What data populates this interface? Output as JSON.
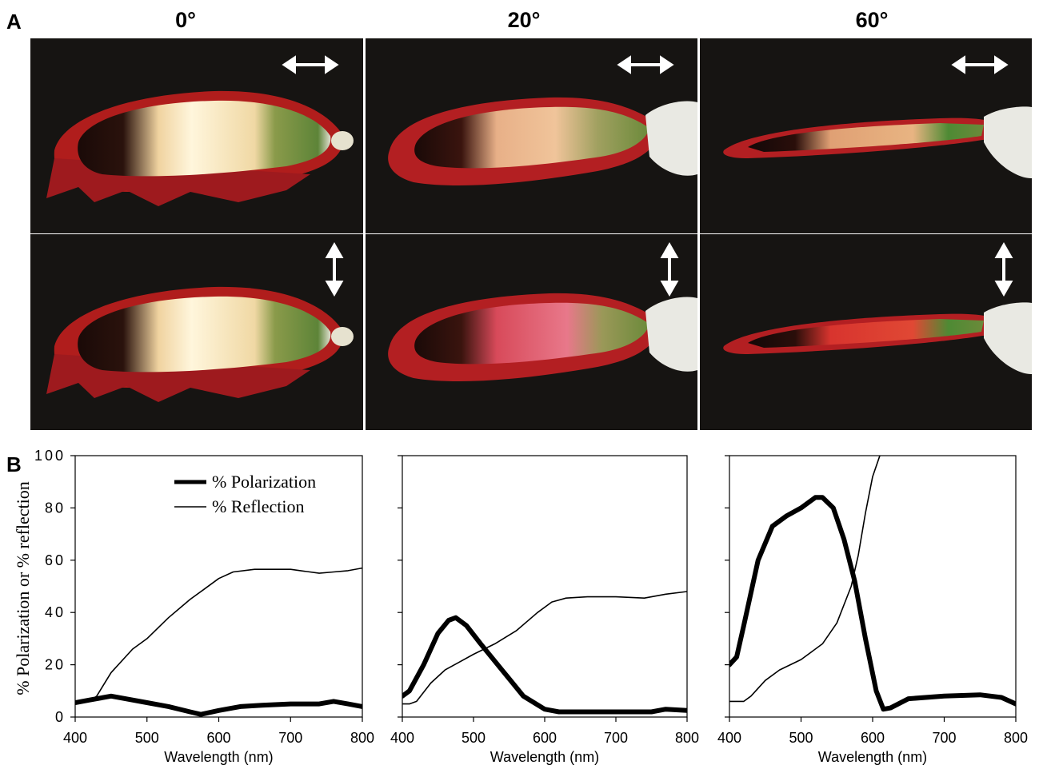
{
  "figure": {
    "panel_a_label": "A",
    "panel_b_label": "B",
    "angles": [
      "0°",
      "20°",
      "60°"
    ],
    "polarizer_orientations": [
      "horizontal",
      "vertical"
    ],
    "photo_description_colors": {
      "background": "#161412",
      "scale_red": "#b01d1c",
      "scale_cream": "#f3dfae",
      "scale_green": "#6f8e3c",
      "scale_pink": "#e0566a",
      "glove": "#e9e9e3"
    }
  },
  "chart_data": [
    {
      "type": "line",
      "angle": "0°",
      "xlabel": "Wavelength (nm)",
      "ylabel": "% Polarization or % reflection",
      "xlim": [
        400,
        800
      ],
      "ylim": [
        0,
        100
      ],
      "x_ticks": [
        "400",
        "500",
        "600",
        "700",
        "800"
      ],
      "y_ticks": [
        "0",
        "20",
        "40",
        "60",
        "80",
        "100"
      ],
      "legend": {
        "position": "top-right",
        "entries": [
          "% Polarization",
          "% Reflection"
        ]
      },
      "series": [
        {
          "name": "% Polarization",
          "line": "thick",
          "x": [
            400,
            420,
            450,
            470,
            500,
            530,
            560,
            575,
            600,
            630,
            660,
            700,
            740,
            760,
            780,
            800
          ],
          "y": [
            5.5,
            6.5,
            8,
            7,
            5.5,
            4,
            2,
            1,
            2.5,
            4,
            4.5,
            5,
            5,
            6,
            5,
            4
          ]
        },
        {
          "name": "% Reflection",
          "line": "thin",
          "x": [
            400,
            420,
            430,
            450,
            480,
            500,
            530,
            560,
            580,
            600,
            620,
            650,
            700,
            740,
            760,
            780,
            800
          ],
          "y": [
            6,
            6,
            8,
            17,
            26,
            30,
            38,
            45,
            49,
            53,
            55.5,
            56.5,
            56.5,
            55,
            55.5,
            56,
            57
          ]
        }
      ]
    },
    {
      "type": "line",
      "angle": "20°",
      "xlabel": "Wavelength (nm)",
      "xlim": [
        400,
        800
      ],
      "ylim": [
        0,
        100
      ],
      "x_ticks": [
        "400",
        "500",
        "600",
        "700",
        "800"
      ],
      "series": [
        {
          "name": "% Polarization",
          "line": "thick",
          "x": [
            400,
            410,
            430,
            450,
            465,
            475,
            490,
            510,
            540,
            570,
            600,
            620,
            650,
            700,
            750,
            770,
            800
          ],
          "y": [
            8,
            10,
            20,
            32,
            37,
            38,
            35,
            28,
            18,
            8,
            3,
            2,
            2,
            2,
            2,
            3,
            2.5
          ]
        },
        {
          "name": "% Reflection",
          "line": "thin",
          "x": [
            400,
            410,
            420,
            440,
            460,
            480,
            500,
            530,
            560,
            590,
            610,
            630,
            660,
            700,
            740,
            770,
            800
          ],
          "y": [
            5,
            5,
            6,
            13,
            18,
            21,
            24,
            28,
            33,
            40,
            44,
            45.5,
            46,
            46,
            45.5,
            47,
            48
          ]
        }
      ]
    },
    {
      "type": "line",
      "angle": "60°",
      "xlabel": "Wavelength (nm)",
      "xlim": [
        400,
        800
      ],
      "ylim": [
        0,
        100
      ],
      "x_ticks": [
        "400",
        "500",
        "600",
        "700",
        "800"
      ],
      "series": [
        {
          "name": "% Polarization",
          "line": "thick",
          "x": [
            400,
            410,
            420,
            440,
            460,
            480,
            500,
            520,
            530,
            545,
            560,
            575,
            590,
            605,
            615,
            625,
            650,
            700,
            750,
            780,
            800
          ],
          "y": [
            20,
            23,
            35,
            60,
            73,
            77,
            80,
            84,
            84,
            80,
            68,
            52,
            30,
            10,
            3,
            3.5,
            7,
            8,
            8.5,
            7.5,
            5
          ]
        },
        {
          "name": "% Reflection",
          "line": "thin",
          "x": [
            400,
            420,
            430,
            450,
            470,
            500,
            530,
            550,
            570,
            580,
            590,
            600,
            610,
            615
          ],
          "y": [
            6,
            6,
            8,
            14,
            18,
            22,
            28,
            36,
            50,
            62,
            78,
            92,
            100,
            106
          ]
        }
      ]
    }
  ]
}
